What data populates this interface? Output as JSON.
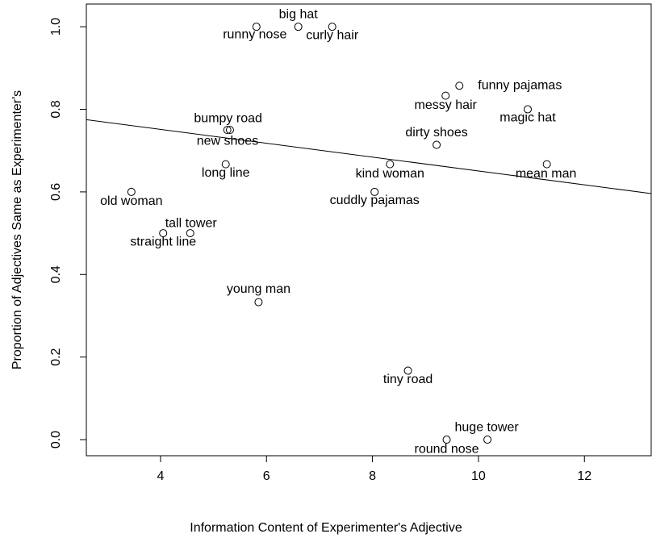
{
  "chart_data": {
    "type": "scatter",
    "xlabel": "Information Content of Experimenter's Adjective",
    "ylabel": "Proportion of Adjectives Same as Experimenter's",
    "labels": [
      "big hat",
      "runny nose",
      "curly hair",
      "funny pajamas",
      "messy hair",
      "magic hat",
      "dirty shoes",
      "bumpy road",
      "new shoes",
      "long line",
      "kind woman",
      "mean man",
      "old woman",
      "cuddly pajamas",
      "tall tower",
      "straight line",
      "young man",
      "tiny road",
      "huge tower",
      "round nose"
    ],
    "x": [
      6.6,
      5.81,
      7.24,
      9.64,
      9.38,
      10.93,
      9.21,
      5.26,
      5.31,
      5.23,
      8.33,
      11.29,
      3.45,
      8.04,
      4.56,
      4.05,
      5.85,
      8.67,
      10.17,
      9.4
    ],
    "values": [
      1.0,
      1.0,
      1.0,
      0.857,
      0.833,
      0.8,
      0.714,
      0.75,
      0.75,
      0.667,
      0.667,
      0.667,
      0.6,
      0.6,
      0.5,
      0.5,
      0.333,
      0.167,
      0,
      0
    ],
    "fit_line": {
      "x": [
        2.6,
        13.26
      ],
      "y": [
        0.775,
        0.596
      ]
    },
    "xlim": [
      2.6,
      13.26
    ],
    "ylim": [
      -0.039,
      1.055
    ],
    "xticks": [
      4,
      6,
      8,
      10,
      12
    ],
    "yticks": [
      {
        "value": 0,
        "label": "0.0"
      },
      {
        "value": 0.2,
        "label": "0.2"
      },
      {
        "value": 0.4,
        "label": "0.4"
      },
      {
        "value": 0.6,
        "label": "0.6"
      },
      {
        "value": 0.8,
        "label": "0.8"
      },
      {
        "value": 1,
        "label": "1.0"
      }
    ]
  }
}
